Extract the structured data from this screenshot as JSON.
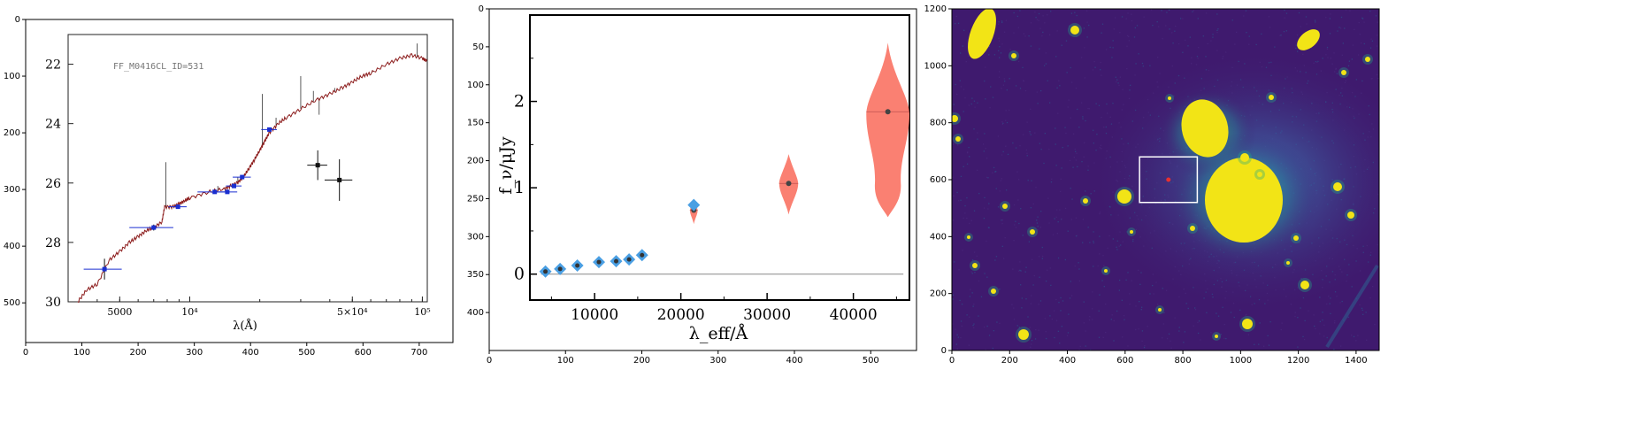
{
  "chart_data": [
    {
      "type": "image",
      "panel": "left",
      "xlim": [
        0,
        760
      ],
      "ylim": [
        570,
        0
      ],
      "x_ticks": [
        0,
        100,
        200,
        300,
        400,
        500,
        600,
        700
      ],
      "y_ticks": [
        0,
        100,
        200,
        300,
        400,
        500
      ],
      "embedded_plot": {
        "type": "line",
        "label": "FF_M0416CL_ID=531",
        "xlabel": "λ(Å)",
        "x_tick_labels": [
          "5000",
          "10⁴",
          "5×10⁴",
          "10⁵"
        ],
        "y_tick_labels": [
          "22",
          "24",
          "26",
          "28",
          "30"
        ],
        "x_scale": "log",
        "xlim": [
          3000,
          105000
        ],
        "ylim": [
          30,
          21
        ]
      },
      "photometry_points": [
        {
          "x": 4300,
          "y": 28.9,
          "xerr": 800,
          "yerr": 0.35
        },
        {
          "x": 7000,
          "y": 27.5,
          "xerr": 1500,
          "yerr": 0.1
        },
        {
          "x": 8900,
          "y": 26.8,
          "xerr": 800,
          "yerr": 0.05
        },
        {
          "x": 12800,
          "y": 26.3,
          "xerr": 2000,
          "yerr": 0.05
        },
        {
          "x": 14500,
          "y": 26.3,
          "xerr": 1500,
          "yerr": 0.05
        },
        {
          "x": 15500,
          "y": 26.1,
          "xerr": 1200,
          "yerr": 0.05
        },
        {
          "x": 16800,
          "y": 25.8,
          "xerr": 1500,
          "yerr": 0.05
        },
        {
          "x": 22000,
          "y": 24.2,
          "xerr": 1700,
          "yerr": 0.05
        },
        {
          "x": 35500,
          "y": 25.4,
          "xerr": 3500,
          "yerr": 0.5
        },
        {
          "x": 44000,
          "y": 25.9,
          "xerr": 6000,
          "yerr": 0.7
        }
      ],
      "model_spectrum": [
        [
          3300,
          30.0
        ],
        [
          3600,
          29.6
        ],
        [
          4000,
          29.4
        ],
        [
          4500,
          28.6
        ],
        [
          5000,
          28.3
        ],
        [
          5500,
          28.0
        ],
        [
          6000,
          27.8
        ],
        [
          6500,
          27.6
        ],
        [
          7000,
          27.5
        ],
        [
          7600,
          27.3
        ],
        [
          7800,
          26.8
        ],
        [
          8500,
          26.8
        ],
        [
          9000,
          26.7
        ],
        [
          9500,
          26.6
        ],
        [
          10000,
          26.5
        ],
        [
          12000,
          26.3
        ],
        [
          14000,
          26.2
        ],
        [
          15000,
          26.1
        ],
        [
          16000,
          26.0
        ],
        [
          17000,
          25.8
        ],
        [
          18000,
          25.5
        ],
        [
          19000,
          25.2
        ],
        [
          20000,
          24.9
        ],
        [
          21000,
          24.6
        ],
        [
          22000,
          24.3
        ],
        [
          24000,
          24.0
        ],
        [
          26000,
          23.8
        ],
        [
          30000,
          23.5
        ],
        [
          35000,
          23.2
        ],
        [
          40000,
          23.0
        ],
        [
          45000,
          22.8
        ],
        [
          50000,
          22.6
        ],
        [
          55000,
          22.4
        ],
        [
          60000,
          22.3
        ],
        [
          70000,
          22.0
        ],
        [
          80000,
          21.8
        ],
        [
          90000,
          21.7
        ],
        [
          100000,
          21.8
        ],
        [
          105000,
          21.9
        ]
      ]
    },
    {
      "type": "violin",
      "panel": "middle",
      "outer_xlim": [
        0,
        560
      ],
      "outer_ylim": [
        450,
        0
      ],
      "outer_x_ticks": [
        0,
        100,
        200,
        300,
        400,
        500
      ],
      "outer_y_ticks": [
        0,
        50,
        100,
        150,
        200,
        250,
        300,
        350,
        400
      ],
      "xlabel": "λ_eff/Å",
      "ylabel": "f_ν/μJy",
      "xlim": [
        2500,
        46500
      ],
      "ylim": [
        -0.3,
        3.0
      ],
      "x_ticks": [
        10000,
        20000,
        30000,
        40000
      ],
      "y_ticks": [
        0,
        1,
        2
      ],
      "observed_diamonds": [
        {
          "x": 4300,
          "y": 0.03
        },
        {
          "x": 6000,
          "y": 0.06
        },
        {
          "x": 8000,
          "y": 0.1
        },
        {
          "x": 10500,
          "y": 0.14
        },
        {
          "x": 12500,
          "y": 0.15
        },
        {
          "x": 14000,
          "y": 0.17
        },
        {
          "x": 15500,
          "y": 0.22
        },
        {
          "x": 21500,
          "y": 0.8
        }
      ],
      "violins": [
        {
          "x": 21500,
          "median": 0.74,
          "low": 0.58,
          "high": 0.85,
          "halfwidth": 450
        },
        {
          "x": 32500,
          "median": 1.05,
          "low": 0.69,
          "high": 1.39,
          "halfwidth": 1100
        },
        {
          "x": 44000,
          "median": 1.88,
          "low": 0.66,
          "high": 2.68,
          "halfwidth": 2500
        }
      ],
      "colors": {
        "diamond": "#4a9fe3",
        "violin": "#fa8072",
        "median": "#444444"
      }
    },
    {
      "type": "heatmap",
      "panel": "right",
      "xlim": [
        0,
        1480
      ],
      "ylim": [
        0,
        1200
      ],
      "x_ticks": [
        0,
        200,
        400,
        600,
        800,
        1000,
        1200,
        1400
      ],
      "y_ticks": [
        0,
        200,
        400,
        600,
        800,
        1000,
        1200
      ],
      "highlight_box": {
        "x0": 650,
        "x1": 850,
        "y0": 520,
        "y1": 680
      },
      "marker": {
        "x": 750,
        "y": 600
      },
      "colors": {
        "background": "#3f1a6e",
        "bright": "#f2e416",
        "mid": "#22a884",
        "box": "#ffffff",
        "marker": "#e83030"
      }
    }
  ]
}
